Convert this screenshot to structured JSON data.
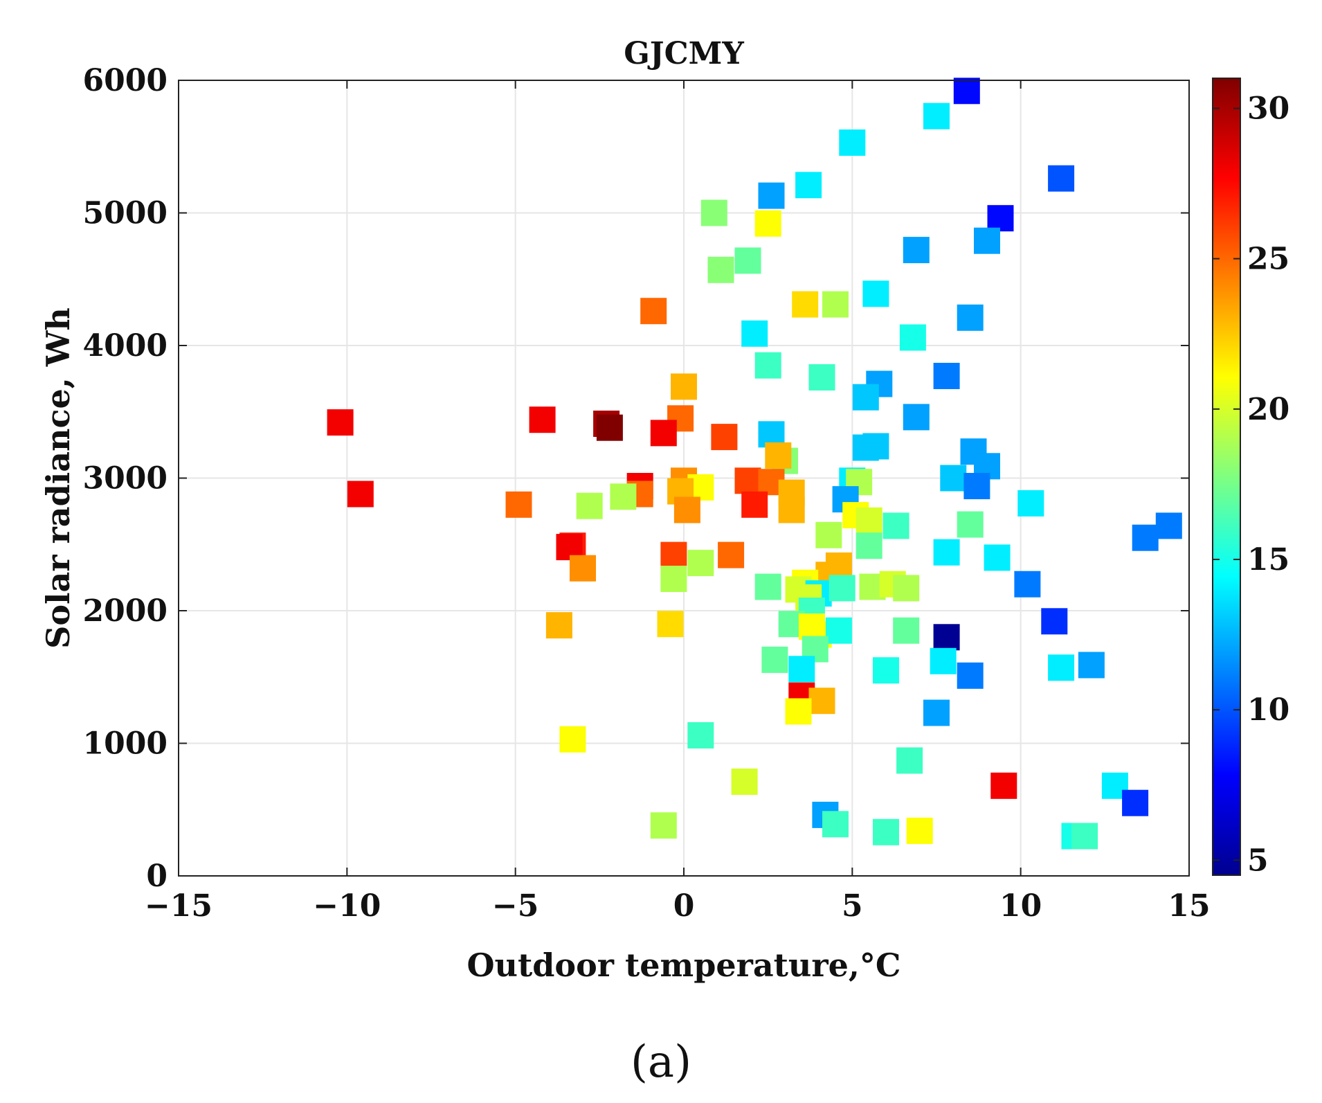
{
  "chart_data": {
    "type": "scatter",
    "title": "GJCMY",
    "xlabel": "Outdoor temperature,°C",
    "ylabel": "Solar radiance, Wh",
    "xlim": [
      -15,
      15
    ],
    "ylim": [
      0,
      6000
    ],
    "xticks": [
      -15,
      -10,
      -5,
      0,
      5,
      10,
      15
    ],
    "xtick_labels": [
      "−15",
      "−10",
      "−5",
      "0",
      "5",
      "10",
      "15"
    ],
    "yticks": [
      0,
      1000,
      2000,
      3000,
      4000,
      5000,
      6000
    ],
    "ytick_labels": [
      "0",
      "1000",
      "2000",
      "3000",
      "4000",
      "5000",
      "6000"
    ],
    "grid": true,
    "marker": "square",
    "colormap": "jet",
    "colorbar": {
      "min": 4.5,
      "max": 31,
      "ticks": [
        5,
        10,
        15,
        20,
        25,
        30
      ],
      "tick_labels": [
        "5",
        "10",
        "15",
        "20",
        "25",
        "30"
      ]
    },
    "points": [
      {
        "x": 8.4,
        "y": 5920,
        "c": 8
      },
      {
        "x": 7.5,
        "y": 5730,
        "c": 14
      },
      {
        "x": 5.0,
        "y": 5530,
        "c": 14
      },
      {
        "x": 11.2,
        "y": 5260,
        "c": 10
      },
      {
        "x": 3.7,
        "y": 5210,
        "c": 14
      },
      {
        "x": 2.6,
        "y": 5130,
        "c": 12
      },
      {
        "x": 0.9,
        "y": 5000,
        "c": 18
      },
      {
        "x": 9.4,
        "y": 4960,
        "c": 8
      },
      {
        "x": 2.5,
        "y": 4920,
        "c": 21
      },
      {
        "x": 9.0,
        "y": 4790,
        "c": 12
      },
      {
        "x": 6.9,
        "y": 4720,
        "c": 12
      },
      {
        "x": 1.9,
        "y": 4640,
        "c": 17
      },
      {
        "x": 1.1,
        "y": 4570,
        "c": 18
      },
      {
        "x": 5.7,
        "y": 4390,
        "c": 14
      },
      {
        "x": 3.6,
        "y": 4310,
        "c": 22
      },
      {
        "x": 4.5,
        "y": 4310,
        "c": 19
      },
      {
        "x": -0.9,
        "y": 4260,
        "c": 25
      },
      {
        "x": 8.5,
        "y": 4210,
        "c": 12
      },
      {
        "x": 2.1,
        "y": 4090,
        "c": 14
      },
      {
        "x": 6.8,
        "y": 4060,
        "c": 15
      },
      {
        "x": 2.5,
        "y": 3850,
        "c": 16
      },
      {
        "x": 4.1,
        "y": 3760,
        "c": 16
      },
      {
        "x": 7.8,
        "y": 3770,
        "c": 11
      },
      {
        "x": 5.8,
        "y": 3710,
        "c": 12
      },
      {
        "x": 5.4,
        "y": 3610,
        "c": 13
      },
      {
        "x": 0.0,
        "y": 3690,
        "c": 23
      },
      {
        "x": 6.9,
        "y": 3460,
        "c": 12
      },
      {
        "x": -10.2,
        "y": 3420,
        "c": 28
      },
      {
        "x": -4.2,
        "y": 3440,
        "c": 28
      },
      {
        "x": -2.3,
        "y": 3410,
        "c": 30
      },
      {
        "x": -2.2,
        "y": 3380,
        "c": 31
      },
      {
        "x": -0.1,
        "y": 3450,
        "c": 25
      },
      {
        "x": -0.6,
        "y": 3340,
        "c": 28
      },
      {
        "x": 1.2,
        "y": 3310,
        "c": 26
      },
      {
        "x": 2.6,
        "y": 3330,
        "c": 13
      },
      {
        "x": 5.4,
        "y": 3230,
        "c": 13
      },
      {
        "x": 5.7,
        "y": 3240,
        "c": 13
      },
      {
        "x": 8.6,
        "y": 3200,
        "c": 12
      },
      {
        "x": 3.0,
        "y": 3130,
        "c": 18
      },
      {
        "x": 2.8,
        "y": 3170,
        "c": 23
      },
      {
        "x": 9.0,
        "y": 3090,
        "c": 12
      },
      {
        "x": 8.0,
        "y": 3000,
        "c": 13
      },
      {
        "x": 8.7,
        "y": 2940,
        "c": 11
      },
      {
        "x": 5.0,
        "y": 2980,
        "c": 14
      },
      {
        "x": 5.2,
        "y": 2970,
        "c": 19
      },
      {
        "x": 10.3,
        "y": 2810,
        "c": 14
      },
      {
        "x": -1.3,
        "y": 2940,
        "c": 28
      },
      {
        "x": -1.3,
        "y": 2880,
        "c": 25
      },
      {
        "x": 0.0,
        "y": 2980,
        "c": 24
      },
      {
        "x": 0.5,
        "y": 2930,
        "c": 21
      },
      {
        "x": -0.1,
        "y": 2900,
        "c": 23
      },
      {
        "x": 1.9,
        "y": 2980,
        "c": 26
      },
      {
        "x": 2.6,
        "y": 2970,
        "c": 25
      },
      {
        "x": 3.2,
        "y": 2890,
        "c": 23
      },
      {
        "x": -9.6,
        "y": 2880,
        "c": 28
      },
      {
        "x": -1.8,
        "y": 2860,
        "c": 19
      },
      {
        "x": -4.9,
        "y": 2800,
        "c": 25
      },
      {
        "x": -2.8,
        "y": 2790,
        "c": 19
      },
      {
        "x": 2.1,
        "y": 2800,
        "c": 27
      },
      {
        "x": 3.2,
        "y": 2760,
        "c": 23
      },
      {
        "x": 0.1,
        "y": 2760,
        "c": 24
      },
      {
        "x": 4.8,
        "y": 2840,
        "c": 12
      },
      {
        "x": 5.1,
        "y": 2720,
        "c": 21
      },
      {
        "x": 5.5,
        "y": 2680,
        "c": 20
      },
      {
        "x": 6.3,
        "y": 2640,
        "c": 16
      },
      {
        "x": 8.5,
        "y": 2650,
        "c": 17
      },
      {
        "x": 13.7,
        "y": 2550,
        "c": 11
      },
      {
        "x": 14.4,
        "y": 2640,
        "c": 11
      },
      {
        "x": -3.3,
        "y": 2490,
        "c": 27
      },
      {
        "x": -3.4,
        "y": 2480,
        "c": 28
      },
      {
        "x": 4.3,
        "y": 2570,
        "c": 19
      },
      {
        "x": 5.5,
        "y": 2490,
        "c": 17
      },
      {
        "x": 7.8,
        "y": 2440,
        "c": 14
      },
      {
        "x": 9.3,
        "y": 2400,
        "c": 14
      },
      {
        "x": -0.3,
        "y": 2420,
        "c": 26
      },
      {
        "x": 1.4,
        "y": 2420,
        "c": 25
      },
      {
        "x": 0.5,
        "y": 2360,
        "c": 19
      },
      {
        "x": -3.0,
        "y": 2320,
        "c": 24
      },
      {
        "x": 4.6,
        "y": 2340,
        "c": 23
      },
      {
        "x": 4.3,
        "y": 2270,
        "c": 23
      },
      {
        "x": 3.6,
        "y": 2210,
        "c": 21
      },
      {
        "x": -0.3,
        "y": 2240,
        "c": 19
      },
      {
        "x": 2.5,
        "y": 2180,
        "c": 17
      },
      {
        "x": 3.4,
        "y": 2160,
        "c": 20
      },
      {
        "x": 4.0,
        "y": 2130,
        "c": 14
      },
      {
        "x": 4.7,
        "y": 2170,
        "c": 16
      },
      {
        "x": 5.6,
        "y": 2180,
        "c": 19
      },
      {
        "x": 6.2,
        "y": 2200,
        "c": 20
      },
      {
        "x": 6.6,
        "y": 2170,
        "c": 19
      },
      {
        "x": 10.2,
        "y": 2200,
        "c": 11
      },
      {
        "x": 3.7,
        "y": 2100,
        "c": 20
      },
      {
        "x": 3.8,
        "y": 2000,
        "c": 16
      },
      {
        "x": 3.2,
        "y": 1900,
        "c": 17
      },
      {
        "x": 11.0,
        "y": 1920,
        "c": 9
      },
      {
        "x": -3.7,
        "y": 1890,
        "c": 23
      },
      {
        "x": -0.4,
        "y": 1900,
        "c": 22
      },
      {
        "x": 3.8,
        "y": 1880,
        "c": 21
      },
      {
        "x": 4.0,
        "y": 1820,
        "c": 21
      },
      {
        "x": 4.6,
        "y": 1850,
        "c": 15
      },
      {
        "x": 6.6,
        "y": 1850,
        "c": 17
      },
      {
        "x": 7.8,
        "y": 1800,
        "c": 5
      },
      {
        "x": 3.9,
        "y": 1710,
        "c": 17
      },
      {
        "x": 2.7,
        "y": 1630,
        "c": 17
      },
      {
        "x": 3.5,
        "y": 1560,
        "c": 14
      },
      {
        "x": 6.0,
        "y": 1550,
        "c": 15
      },
      {
        "x": 7.7,
        "y": 1620,
        "c": 14
      },
      {
        "x": 8.5,
        "y": 1510,
        "c": 11
      },
      {
        "x": 11.2,
        "y": 1570,
        "c": 14
      },
      {
        "x": 12.1,
        "y": 1590,
        "c": 12
      },
      {
        "x": 3.5,
        "y": 1360,
        "c": 28
      },
      {
        "x": 4.1,
        "y": 1320,
        "c": 23
      },
      {
        "x": 3.4,
        "y": 1240,
        "c": 21
      },
      {
        "x": 7.5,
        "y": 1230,
        "c": 12
      },
      {
        "x": -3.3,
        "y": 1030,
        "c": 21
      },
      {
        "x": 0.5,
        "y": 1060,
        "c": 16
      },
      {
        "x": 6.7,
        "y": 870,
        "c": 16
      },
      {
        "x": 1.8,
        "y": 710,
        "c": 20
      },
      {
        "x": 9.5,
        "y": 680,
        "c": 28
      },
      {
        "x": 12.8,
        "y": 680,
        "c": 14
      },
      {
        "x": 13.4,
        "y": 550,
        "c": 9
      },
      {
        "x": 4.2,
        "y": 460,
        "c": 12
      },
      {
        "x": 4.5,
        "y": 390,
        "c": 16
      },
      {
        "x": -0.6,
        "y": 380,
        "c": 19
      },
      {
        "x": 6.0,
        "y": 330,
        "c": 16
      },
      {
        "x": 7.0,
        "y": 340,
        "c": 21
      },
      {
        "x": 11.6,
        "y": 300,
        "c": 15
      },
      {
        "x": 11.9,
        "y": 300,
        "c": 16
      }
    ]
  },
  "caption": "(a)"
}
